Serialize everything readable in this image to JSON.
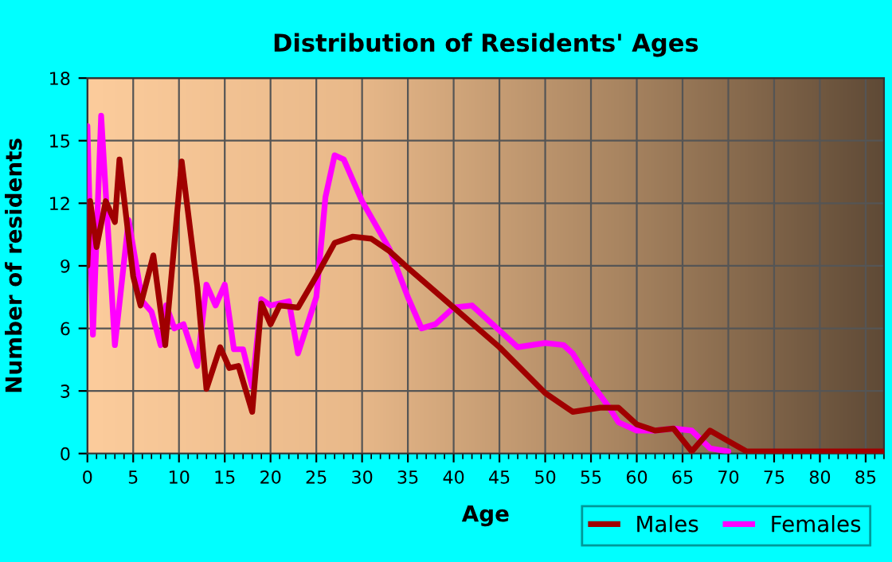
{
  "chart_data": {
    "type": "line",
    "title": "Distribution of Residents' Ages",
    "xlabel": "Age",
    "ylabel": "Number of residents",
    "xlim": [
      0,
      87
    ],
    "xticks": [
      0,
      5,
      10,
      15,
      20,
      25,
      30,
      35,
      40,
      45,
      50,
      55,
      60,
      65,
      70,
      75,
      80,
      85
    ],
    "ylim": [
      0,
      18
    ],
    "yticks": [
      0,
      3,
      6,
      9,
      12,
      15,
      18
    ],
    "grid": true,
    "legend": "bottom right",
    "marker": "none",
    "line_style": "solid",
    "series": [
      {
        "name": "Males",
        "color": "#a00000",
        "x": [
          0,
          0.3,
          1,
          2,
          3,
          3.5,
          5,
          5.8,
          7.2,
          8.5,
          10.3,
          12,
          13,
          14.5,
          15.5,
          16.5,
          18,
          19,
          20,
          21,
          23,
          25,
          27,
          29,
          31,
          33,
          35,
          40,
          45,
          50,
          53,
          56,
          58,
          60,
          62,
          64,
          66,
          68,
          70,
          72,
          75,
          87
        ],
        "values": [
          9,
          12.1,
          9.9,
          12.1,
          11.1,
          14.1,
          8.5,
          7.1,
          9.5,
          5.2,
          14,
          8,
          3.1,
          5.1,
          4.1,
          4.2,
          2,
          7.2,
          6.2,
          7.1,
          7,
          8.5,
          10.1,
          10.4,
          10.3,
          9.7,
          8.9,
          7,
          5.1,
          2.9,
          2,
          2.2,
          2.2,
          1.4,
          1.1,
          1.2,
          0.1,
          1.1,
          0.6,
          0.1,
          0.1,
          0.1
        ]
      },
      {
        "name": "Females",
        "color": "#ff00ff",
        "x": [
          0,
          0.6,
          1.5,
          3,
          4.5,
          6,
          7,
          8,
          8.6,
          9.5,
          10.5,
          12,
          13,
          14,
          15,
          16,
          17,
          18,
          19,
          20,
          22,
          23,
          25,
          26,
          27,
          28,
          30,
          33,
          35,
          36.5,
          38,
          40,
          42,
          45,
          47,
          50,
          52,
          53,
          55,
          57,
          58,
          60,
          62,
          64,
          66,
          68,
          70
        ],
        "values": [
          15.7,
          5.7,
          16.2,
          5.2,
          11.2,
          7.3,
          6.8,
          5.2,
          7.1,
          6,
          6.2,
          4.2,
          8.1,
          7.1,
          8.1,
          5,
          5,
          3.2,
          7.4,
          7.1,
          7.3,
          4.8,
          7.5,
          12.3,
          14.3,
          14.1,
          12.1,
          9.8,
          7.5,
          6,
          6.2,
          7,
          7.1,
          5.9,
          5.1,
          5.3,
          5.2,
          4.8,
          3.4,
          2.2,
          1.5,
          1.1,
          1.1,
          1.2,
          1.1,
          0.25,
          0.1
        ]
      }
    ]
  }
}
